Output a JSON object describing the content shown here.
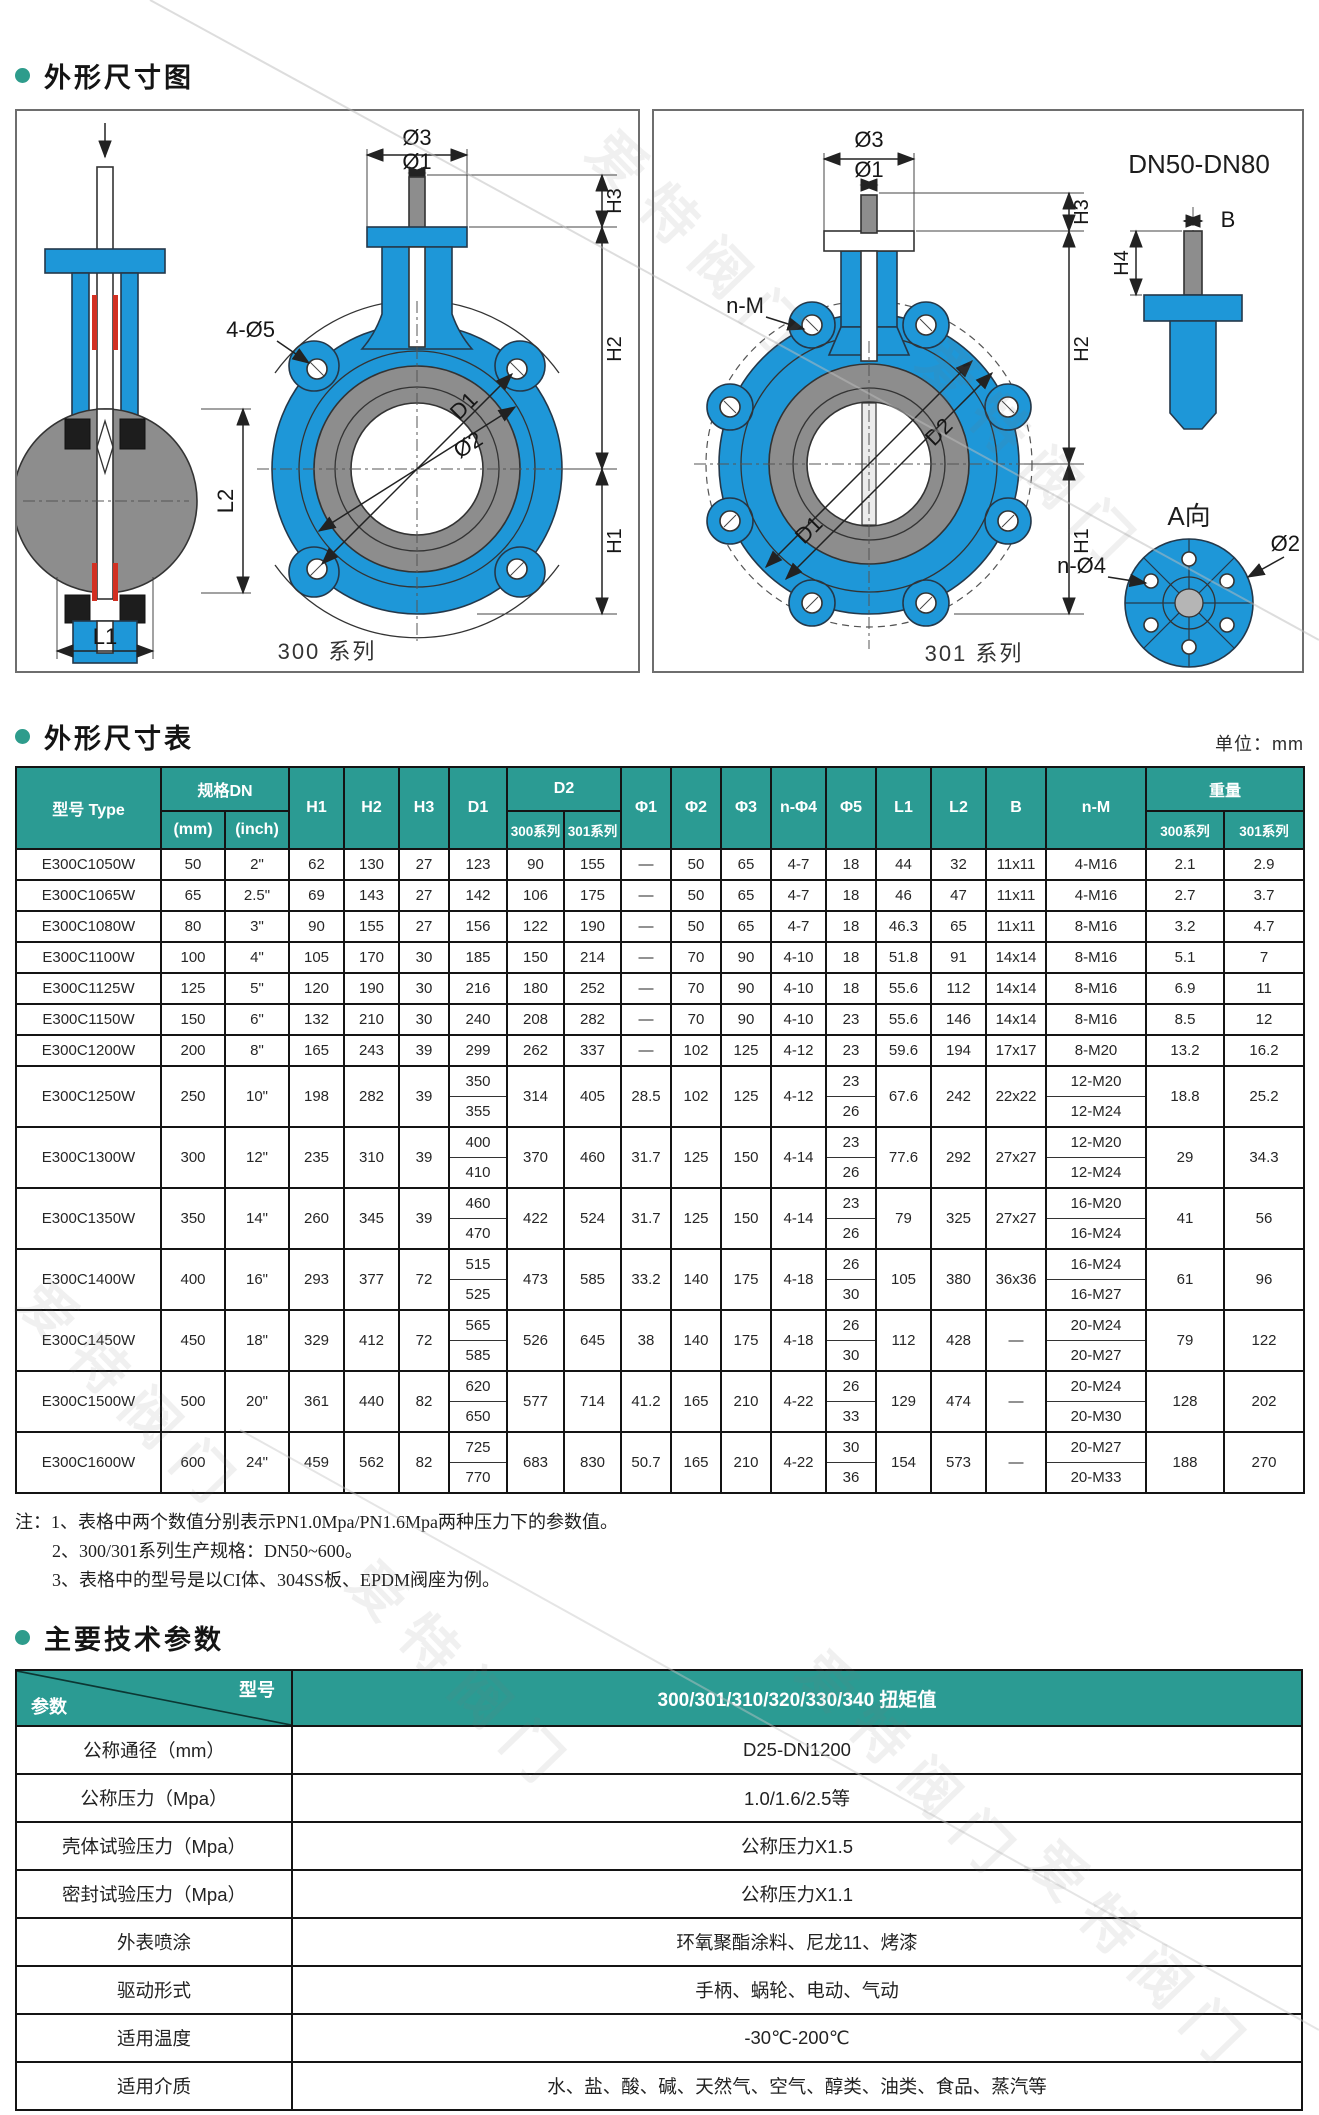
{
  "watermark": "爱特阀门",
  "figure": {
    "title": "外形尺寸图",
    "f300": {
      "caption": "300 系列",
      "labels": {
        "phi3": "Ø3",
        "phi1": "Ø1",
        "h3": "H3",
        "h2": "H2",
        "h1": "H1",
        "holes": "4-Ø5",
        "d1": "D1",
        "phi2": "Ø2",
        "l1": "L1",
        "l2": "L2"
      }
    },
    "f301": {
      "caption": "301 系列",
      "range": "DN50-DN80",
      "labels": {
        "phi3": "Ø3",
        "phi1": "Ø1",
        "h3": "H3",
        "h2": "H2",
        "h1": "H1",
        "nm": "n-M",
        "d1": "D1",
        "d2": "D2",
        "b": "B",
        "h4": "H4",
        "aview": "A向",
        "nphi4": "n-Ø4",
        "phi2": "Ø2"
      }
    }
  },
  "dim_table": {
    "title": "外形尺寸表",
    "unit": "单位：mm",
    "header": {
      "type": "型号 Type",
      "spec": "规格DN",
      "spec_mm": "(mm)",
      "spec_inch": "(inch)",
      "h1": "H1",
      "h2": "H2",
      "h3": "H3",
      "d1": "D1",
      "d2": "D2",
      "s300": "300系列",
      "s301": "301系列",
      "phi1": "Φ1",
      "phi2": "Φ2",
      "phi3": "Φ3",
      "nphi4": "n-Φ4",
      "phi5": "Φ5",
      "l1": "L1",
      "l2": "L2",
      "b": "B",
      "nm": "n-M",
      "weight": "重量",
      "w300": "300系列",
      "w301": "301系列"
    },
    "rows": [
      {
        "type": "E300C1050W",
        "dn_mm": "50",
        "dn_inch": "2\"",
        "h1": "62",
        "h2": "130",
        "h3": "27",
        "d1": [
          "123"
        ],
        "d2_300": "90",
        "d2_301": "155",
        "phi1": "—",
        "phi2": "50",
        "phi3": "65",
        "nphi4": "4-7",
        "phi5": [
          "18"
        ],
        "l1": "44",
        "l2": "32",
        "b": "11x11",
        "nm": [
          "4-M16"
        ],
        "w300": "2.1",
        "w301": "2.9"
      },
      {
        "type": "E300C1065W",
        "dn_mm": "65",
        "dn_inch": "2.5\"",
        "h1": "69",
        "h2": "143",
        "h3": "27",
        "d1": [
          "142"
        ],
        "d2_300": "106",
        "d2_301": "175",
        "phi1": "—",
        "phi2": "50",
        "phi3": "65",
        "nphi4": "4-7",
        "phi5": [
          "18"
        ],
        "l1": "46",
        "l2": "47",
        "b": "11x11",
        "nm": [
          "4-M16"
        ],
        "w300": "2.7",
        "w301": "3.7"
      },
      {
        "type": "E300C1080W",
        "dn_mm": "80",
        "dn_inch": "3\"",
        "h1": "90",
        "h2": "155",
        "h3": "27",
        "d1": [
          "156"
        ],
        "d2_300": "122",
        "d2_301": "190",
        "phi1": "—",
        "phi2": "50",
        "phi3": "65",
        "nphi4": "4-7",
        "phi5": [
          "18"
        ],
        "l1": "46.3",
        "l2": "65",
        "b": "11x11",
        "nm": [
          "8-M16"
        ],
        "w300": "3.2",
        "w301": "4.7"
      },
      {
        "type": "E300C1100W",
        "dn_mm": "100",
        "dn_inch": "4\"",
        "h1": "105",
        "h2": "170",
        "h3": "30",
        "d1": [
          "185"
        ],
        "d2_300": "150",
        "d2_301": "214",
        "phi1": "—",
        "phi2": "70",
        "phi3": "90",
        "nphi4": "4-10",
        "phi5": [
          "18"
        ],
        "l1": "51.8",
        "l2": "91",
        "b": "14x14",
        "nm": [
          "8-M16"
        ],
        "w300": "5.1",
        "w301": "7"
      },
      {
        "type": "E300C1125W",
        "dn_mm": "125",
        "dn_inch": "5\"",
        "h1": "120",
        "h2": "190",
        "h3": "30",
        "d1": [
          "216"
        ],
        "d2_300": "180",
        "d2_301": "252",
        "phi1": "—",
        "phi2": "70",
        "phi3": "90",
        "nphi4": "4-10",
        "phi5": [
          "18"
        ],
        "l1": "55.6",
        "l2": "112",
        "b": "14x14",
        "nm": [
          "8-M16"
        ],
        "w300": "6.9",
        "w301": "11"
      },
      {
        "type": "E300C1150W",
        "dn_mm": "150",
        "dn_inch": "6\"",
        "h1": "132",
        "h2": "210",
        "h3": "30",
        "d1": [
          "240"
        ],
        "d2_300": "208",
        "d2_301": "282",
        "phi1": "—",
        "phi2": "70",
        "phi3": "90",
        "nphi4": "4-10",
        "phi5": [
          "23"
        ],
        "l1": "55.6",
        "l2": "146",
        "b": "14x14",
        "nm": [
          "8-M16"
        ],
        "w300": "8.5",
        "w301": "12"
      },
      {
        "type": "E300C1200W",
        "dn_mm": "200",
        "dn_inch": "8\"",
        "h1": "165",
        "h2": "243",
        "h3": "39",
        "d1": [
          "299"
        ],
        "d2_300": "262",
        "d2_301": "337",
        "phi1": "—",
        "phi2": "102",
        "phi3": "125",
        "nphi4": "4-12",
        "phi5": [
          "23"
        ],
        "l1": "59.6",
        "l2": "194",
        "b": "17x17",
        "nm": [
          "8-M20"
        ],
        "w300": "13.2",
        "w301": "16.2"
      },
      {
        "type": "E300C1250W",
        "dn_mm": "250",
        "dn_inch": "10\"",
        "h1": "198",
        "h2": "282",
        "h3": "39",
        "d1": [
          "350",
          "355"
        ],
        "d2_300": "314",
        "d2_301": "405",
        "phi1": "28.5",
        "phi2": "102",
        "phi3": "125",
        "nphi4": "4-12",
        "phi5": [
          "23",
          "26"
        ],
        "l1": "67.6",
        "l2": "242",
        "b": "22x22",
        "nm": [
          "12-M20",
          "12-M24"
        ],
        "w300": "18.8",
        "w301": "25.2"
      },
      {
        "type": "E300C1300W",
        "dn_mm": "300",
        "dn_inch": "12\"",
        "h1": "235",
        "h2": "310",
        "h3": "39",
        "d1": [
          "400",
          "410"
        ],
        "d2_300": "370",
        "d2_301": "460",
        "phi1": "31.7",
        "phi2": "125",
        "phi3": "150",
        "nphi4": "4-14",
        "phi5": [
          "23",
          "26"
        ],
        "l1": "77.6",
        "l2": "292",
        "b": "27x27",
        "nm": [
          "12-M20",
          "12-M24"
        ],
        "w300": "29",
        "w301": "34.3"
      },
      {
        "type": "E300C1350W",
        "dn_mm": "350",
        "dn_inch": "14\"",
        "h1": "260",
        "h2": "345",
        "h3": "39",
        "d1": [
          "460",
          "470"
        ],
        "d2_300": "422",
        "d2_301": "524",
        "phi1": "31.7",
        "phi2": "125",
        "phi3": "150",
        "nphi4": "4-14",
        "phi5": [
          "23",
          "26"
        ],
        "l1": "79",
        "l2": "325",
        "b": "27x27",
        "nm": [
          "16-M20",
          "16-M24"
        ],
        "w300": "41",
        "w301": "56"
      },
      {
        "type": "E300C1400W",
        "dn_mm": "400",
        "dn_inch": "16\"",
        "h1": "293",
        "h2": "377",
        "h3": "72",
        "d1": [
          "515",
          "525"
        ],
        "d2_300": "473",
        "d2_301": "585",
        "phi1": "33.2",
        "phi2": "140",
        "phi3": "175",
        "nphi4": "4-18",
        "phi5": [
          "26",
          "30"
        ],
        "l1": "105",
        "l2": "380",
        "b": "36x36",
        "nm": [
          "16-M24",
          "16-M27"
        ],
        "w300": "61",
        "w301": "96"
      },
      {
        "type": "E300C1450W",
        "dn_mm": "450",
        "dn_inch": "18\"",
        "h1": "329",
        "h2": "412",
        "h3": "72",
        "d1": [
          "565",
          "585"
        ],
        "d2_300": "526",
        "d2_301": "645",
        "phi1": "38",
        "phi2": "140",
        "phi3": "175",
        "nphi4": "4-18",
        "phi5": [
          "26",
          "30"
        ],
        "l1": "112",
        "l2": "428",
        "b": "—",
        "nm": [
          "20-M24",
          "20-M27"
        ],
        "w300": "79",
        "w301": "122"
      },
      {
        "type": "E300C1500W",
        "dn_mm": "500",
        "dn_inch": "20\"",
        "h1": "361",
        "h2": "440",
        "h3": "82",
        "d1": [
          "620",
          "650"
        ],
        "d2_300": "577",
        "d2_301": "714",
        "phi1": "41.2",
        "phi2": "165",
        "phi3": "210",
        "nphi4": "4-22",
        "phi5": [
          "26",
          "33"
        ],
        "l1": "129",
        "l2": "474",
        "b": "—",
        "nm": [
          "20-M24",
          "20-M30"
        ],
        "w300": "128",
        "w301": "202"
      },
      {
        "type": "E300C1600W",
        "dn_mm": "600",
        "dn_inch": "24\"",
        "h1": "459",
        "h2": "562",
        "h3": "82",
        "d1": [
          "725",
          "770"
        ],
        "d2_300": "683",
        "d2_301": "830",
        "phi1": "50.7",
        "phi2": "165",
        "phi3": "210",
        "nphi4": "4-22",
        "phi5": [
          "30",
          "36"
        ],
        "l1": "154",
        "l2": "573",
        "b": "—",
        "nm": [
          "20-M27",
          "20-M33"
        ],
        "w300": "188",
        "w301": "270"
      }
    ]
  },
  "notes": {
    "line1": "注：1、表格中两个数值分别表示PN1.0Mpa/PN1.6Mpa两种压力下的参数值。",
    "line2": "2、300/301系列生产规格：DN50~600。",
    "line3": "3、表格中的型号是以CI体、304SS板、EPDM阀座为例。"
  },
  "tech_params": {
    "title": "主要技术参数",
    "header": {
      "param": "参数",
      "model": "型号",
      "torque": "300/301/310/320/330/340 扭矩值"
    },
    "rows": [
      {
        "label": "公称通径（mm）",
        "value": "D25-DN1200"
      },
      {
        "label": "公称压力（Mpa）",
        "value": "1.0/1.6/2.5等"
      },
      {
        "label": "壳体试验压力（Mpa）",
        "value": "公称压力X1.5"
      },
      {
        "label": "密封试验压力（Mpa）",
        "value": "公称压力X1.1"
      },
      {
        "label": "外表喷涂",
        "value": "环氧聚酯涂料、尼龙11、烤漆"
      },
      {
        "label": "驱动形式",
        "value": "手柄、蜗轮、电动、气动"
      },
      {
        "label": "适用温度",
        "value": "-30℃-200℃"
      },
      {
        "label": "适用介质",
        "value": "水、盐、酸、碱、天然气、空气、醇类、油类、食品、蒸汽等"
      }
    ]
  }
}
